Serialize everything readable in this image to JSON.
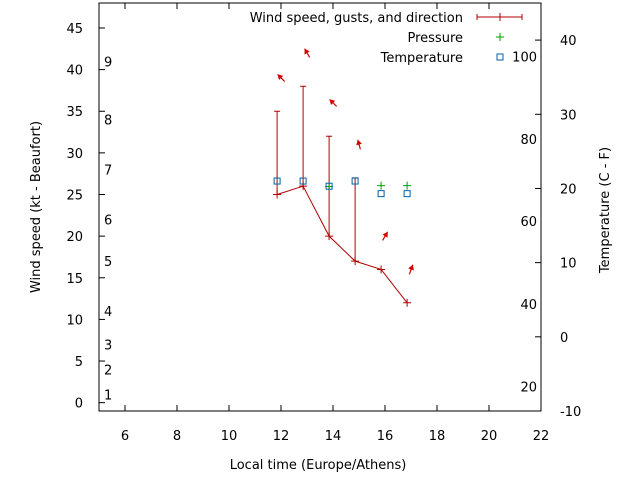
{
  "chart_data": {
    "type": "line",
    "xlabel": "Local time (Europe/Athens)",
    "ylabel_left": "Wind speed (kt - Beaufort)",
    "ylabel_right": "Temperature (C - F)",
    "xlim": [
      5,
      22
    ],
    "x_ticks": [
      6,
      8,
      10,
      12,
      14,
      16,
      18,
      20,
      22
    ],
    "ylim_left": [
      -1,
      48
    ],
    "y_left_ticks": [
      0,
      5,
      10,
      15,
      20,
      25,
      30,
      35,
      40,
      45
    ],
    "ylim_right": [
      -10,
      45
    ],
    "y_right_ticks": [
      -10,
      0,
      10,
      20,
      30,
      40
    ],
    "beaufort_labels": [
      {
        "label": "1",
        "knots": 1
      },
      {
        "label": "2",
        "knots": 4
      },
      {
        "label": "3",
        "knots": 7
      },
      {
        "label": "4",
        "knots": 11
      },
      {
        "label": "5",
        "knots": 17
      },
      {
        "label": "6",
        "knots": 22
      },
      {
        "label": "7",
        "knots": 28
      },
      {
        "label": "8",
        "knots": 34
      },
      {
        "label": "9",
        "knots": 41
      }
    ],
    "fahrenheit_labels": [
      {
        "label": "20",
        "celsius": -6.7
      },
      {
        "label": "40",
        "celsius": 4.4
      },
      {
        "label": "60",
        "celsius": 15.6
      },
      {
        "label": "80",
        "celsius": 26.7
      },
      {
        "label": "100",
        "celsius": 37.8
      }
    ],
    "grid": false,
    "legend_position": "top-right",
    "series": [
      {
        "name": "Wind speed, gusts, and direction",
        "color": "#b00000",
        "x": [
          11.85,
          12.85,
          13.85,
          14.85,
          15.85,
          16.85
        ],
        "speed": [
          25,
          26,
          20,
          17,
          16,
          12
        ],
        "gust": [
          35,
          38,
          32,
          27,
          16,
          12
        ],
        "arrow_dir_deg": [
          315,
          330,
          315,
          345,
          30,
          20
        ],
        "arrow_knots": [
          39,
          42,
          36,
          31,
          20,
          16
        ]
      },
      {
        "name": "Pressure",
        "color": "#00a000",
        "x": [
          13.85,
          15.85,
          16.85
        ],
        "y": [
          26.2,
          26.3,
          26.3
        ]
      },
      {
        "name": "Temperature",
        "color": "#0060ad",
        "x": [
          11.85,
          12.85,
          13.85,
          14.85,
          15.85,
          16.85
        ],
        "y": [
          21,
          21,
          20.3,
          21,
          19.3,
          19.3
        ]
      }
    ]
  }
}
